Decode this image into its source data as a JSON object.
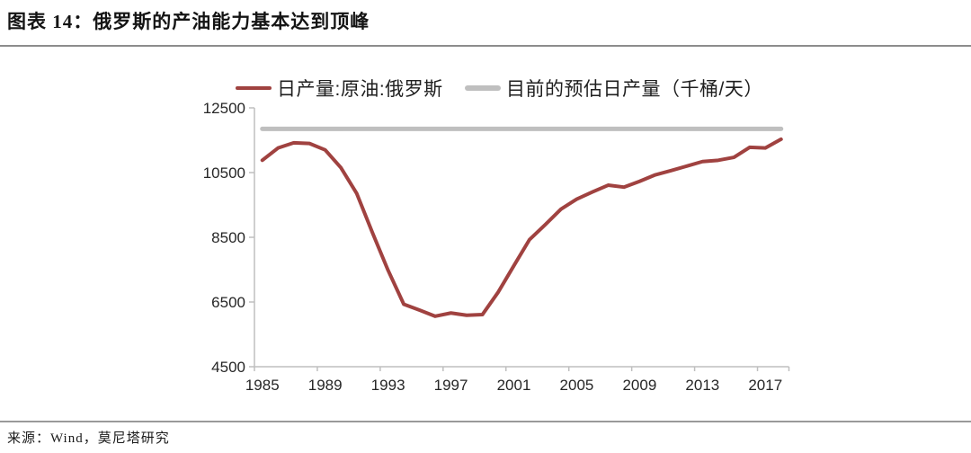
{
  "header": {
    "title": "图表 14：俄罗斯的产油能力基本达到顶峰"
  },
  "footer": {
    "source": "来源：Wind，莫尼塔研究"
  },
  "legend": [
    {
      "label": "日产量:原油:俄罗斯",
      "color": "#a04240"
    },
    {
      "label": "目前的预估日产量（千桶/天）",
      "color": "#bfbfbf"
    }
  ],
  "colors": {
    "production_line": "#a04240",
    "estimate_line": "#bfbfbf",
    "axis": "#bfbfbf",
    "tick_label": "#262626",
    "title_text": "#141414",
    "rule": "#8c8c8c"
  },
  "chart_data": {
    "type": "line",
    "title": "",
    "xlabel": "",
    "ylabel": "",
    "grid": false,
    "legend_position": "top",
    "ylim": [
      4500,
      12500
    ],
    "y_ticks": [
      12500,
      10500,
      8500,
      6500,
      4500
    ],
    "x_tick_labels": [
      1985,
      1989,
      1993,
      1997,
      2001,
      2005,
      2009,
      2013,
      2017
    ],
    "x": [
      1985,
      1986,
      1987,
      1988,
      1989,
      1990,
      1991,
      1992,
      1993,
      1994,
      1995,
      1996,
      1997,
      1998,
      1999,
      2000,
      2001,
      2002,
      2003,
      2004,
      2005,
      2006,
      2007,
      2008,
      2009,
      2010,
      2011,
      2012,
      2013,
      2014,
      2015,
      2016,
      2017,
      2018
    ],
    "series": [
      {
        "name": "日产量:原油:俄罗斯",
        "color": "#a04240",
        "values": [
          10880,
          11260,
          11420,
          11400,
          11200,
          10650,
          9860,
          8650,
          7480,
          6430,
          6250,
          6060,
          6160,
          6090,
          6110,
          6800,
          7620,
          8430,
          8890,
          9370,
          9680,
          9900,
          10110,
          10050,
          10230,
          10430,
          10560,
          10700,
          10840,
          10880,
          10970,
          11280,
          11260,
          11530
        ]
      },
      {
        "name": "目前的预估日产量（千桶/天）",
        "color": "#bfbfbf",
        "constant_value": 11850
      }
    ]
  }
}
